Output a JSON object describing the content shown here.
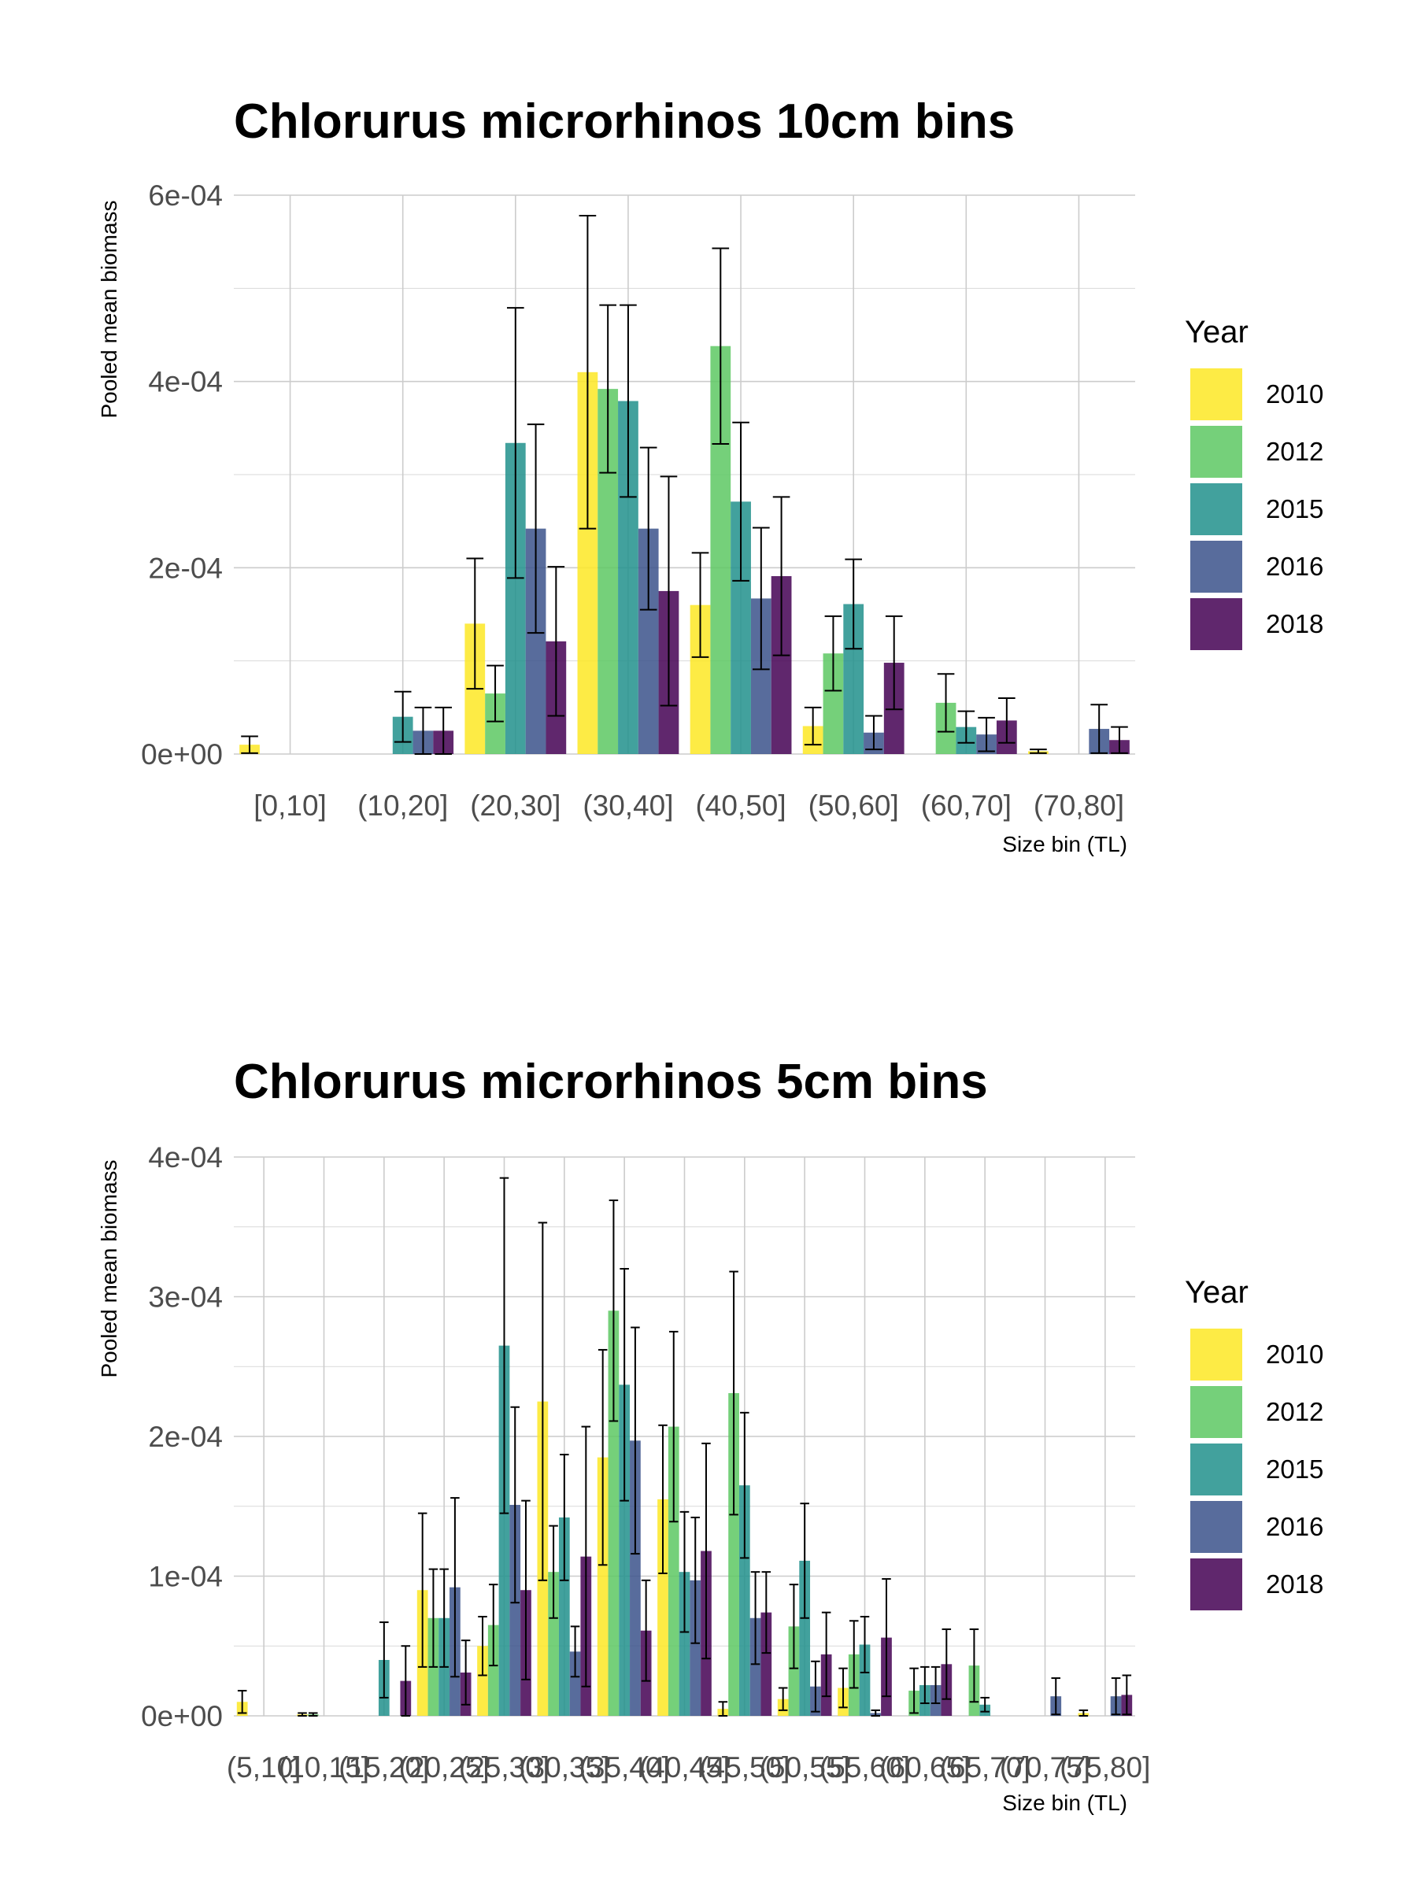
{
  "chart_data": [
    {
      "type": "bar",
      "title": "Chlorurus microrhinos 10cm bins",
      "xlabel": "Size bin (TL)",
      "ylabel": "Pooled mean biomass",
      "ylim": [
        0,
        0.0006
      ],
      "y_ticks": [
        "0e+00",
        "2e-04",
        "4e-04",
        "6e-04"
      ],
      "y_tick_values": [
        0,
        0.0002,
        0.0004,
        0.0006
      ],
      "grid": true,
      "legend": {
        "title": "Year",
        "position": "right"
      },
      "categories": [
        "[0,10]",
        "(10,20]",
        "(20,30]",
        "(30,40]",
        "(40,50]",
        "(50,60]",
        "(60,70]",
        "(70,80]"
      ],
      "series": [
        {
          "name": "2010",
          "color": "#FDE725",
          "values": [
            1e-05,
            null,
            0.00014,
            0.00041,
            0.00016,
            3e-05,
            null,
            3e-06
          ],
          "errors": [
            9e-06,
            null,
            7e-05,
            0.000168,
            5.6e-05,
            2e-05,
            null,
            2e-06
          ]
        },
        {
          "name": "2012",
          "color": "#5DC863",
          "values": [
            null,
            null,
            6.5e-05,
            0.000392,
            0.000438,
            0.000108,
            5.5e-05,
            null
          ],
          "errors": [
            null,
            null,
            3e-05,
            9e-05,
            0.000105,
            4e-05,
            3.1e-05,
            null
          ]
        },
        {
          "name": "2015",
          "color": "#21908C",
          "values": [
            null,
            4e-05,
            0.000334,
            0.000379,
            0.000271,
            0.000161,
            2.9e-05,
            null
          ],
          "errors": [
            null,
            2.7e-05,
            0.000145,
            0.000103,
            8.5e-05,
            4.8e-05,
            1.7e-05,
            null
          ]
        },
        {
          "name": "2016",
          "color": "#3B528B",
          "values": [
            null,
            2.5e-05,
            0.000242,
            0.000242,
            0.000167,
            2.3e-05,
            2.1e-05,
            2.7e-05
          ],
          "errors": [
            null,
            2.5e-05,
            0.000112,
            8.7e-05,
            7.6e-05,
            1.8e-05,
            1.8e-05,
            2.6e-05
          ]
        },
        {
          "name": "2018",
          "color": "#440154",
          "values": [
            null,
            2.5e-05,
            0.000121,
            0.000175,
            0.000191,
            9.8e-05,
            3.6e-05,
            1.5e-05
          ],
          "errors": [
            null,
            2.5e-05,
            8e-05,
            0.000123,
            8.5e-05,
            5e-05,
            2.4e-05,
            1.4e-05
          ]
        }
      ]
    },
    {
      "type": "bar",
      "title": "Chlorurus microrhinos 5cm bins",
      "xlabel": "Size bin (TL)",
      "ylabel": "Pooled mean biomass",
      "ylim": [
        0,
        0.0004
      ],
      "y_ticks": [
        "0e+00",
        "1e-04",
        "2e-04",
        "3e-04",
        "4e-04"
      ],
      "y_tick_values": [
        0,
        0.0001,
        0.0002,
        0.0003,
        0.0004
      ],
      "grid": true,
      "legend": {
        "title": "Year",
        "position": "right"
      },
      "categories": [
        "(5,10]",
        "(10,15]",
        "(15,20]",
        "(20,25]",
        "(25,30]",
        "(30,35]",
        "(35,40]",
        "(40,45]",
        "(45,50]",
        "(50,55]",
        "(55,60]",
        "(60,65]",
        "(65,70]",
        "(70,75]",
        "(75,80]"
      ],
      "series": [
        {
          "name": "2010",
          "color": "#FDE725",
          "values": [
            1e-05,
            1e-06,
            null,
            9e-05,
            5e-05,
            0.000225,
            0.000185,
            0.000155,
            5e-06,
            1.2e-05,
            2e-05,
            null,
            null,
            null,
            2e-06
          ],
          "errors": [
            8e-06,
            1e-06,
            null,
            5.5e-05,
            2.1e-05,
            0.000128,
            7.7e-05,
            5.3e-05,
            5e-06,
            8e-06,
            1.4e-05,
            null,
            null,
            null,
            2e-06
          ]
        },
        {
          "name": "2012",
          "color": "#5DC863",
          "values": [
            null,
            1e-06,
            null,
            7e-05,
            6.5e-05,
            0.000103,
            0.00029,
            0.000207,
            0.000231,
            6.4e-05,
            4.4e-05,
            1.8e-05,
            3.6e-05,
            null,
            null
          ],
          "errors": [
            null,
            1e-06,
            null,
            3.5e-05,
            2.9e-05,
            3.3e-05,
            7.9e-05,
            6.8e-05,
            8.7e-05,
            3e-05,
            2.4e-05,
            1.6e-05,
            2.6e-05,
            null,
            null
          ]
        },
        {
          "name": "2015",
          "color": "#21908C",
          "values": [
            null,
            null,
            4e-05,
            7e-05,
            0.000265,
            0.000142,
            0.000237,
            0.000103,
            0.000165,
            0.000111,
            5.1e-05,
            2.2e-05,
            8e-06,
            null,
            null
          ],
          "errors": [
            null,
            null,
            2.7e-05,
            3.5e-05,
            0.00012,
            4.5e-05,
            8.3e-05,
            4.3e-05,
            5.2e-05,
            4.1e-05,
            2e-05,
            1.3e-05,
            5e-06,
            null,
            null
          ]
        },
        {
          "name": "2016",
          "color": "#3B528B",
          "values": [
            null,
            null,
            null,
            9.2e-05,
            0.000151,
            4.6e-05,
            0.000197,
            9.7e-05,
            7e-05,
            2.1e-05,
            2e-06,
            2.2e-05,
            null,
            1.4e-05,
            1.4e-05
          ],
          "errors": [
            null,
            null,
            null,
            6.4e-05,
            7e-05,
            1.8e-05,
            8.1e-05,
            4.5e-05,
            3.3e-05,
            1.8e-05,
            2e-06,
            1.3e-05,
            null,
            1.3e-05,
            1.3e-05
          ]
        },
        {
          "name": "2018",
          "color": "#440154",
          "values": [
            null,
            null,
            2.5e-05,
            3.1e-05,
            9e-05,
            0.000114,
            6.1e-05,
            0.000118,
            7.4e-05,
            4.4e-05,
            5.6e-05,
            3.7e-05,
            null,
            null,
            1.5e-05
          ],
          "errors": [
            null,
            null,
            2.5e-05,
            2.3e-05,
            6.4e-05,
            9.3e-05,
            3.6e-05,
            7.7e-05,
            2.9e-05,
            3e-05,
            4.2e-05,
            2.5e-05,
            null,
            null,
            1.4e-05
          ]
        }
      ]
    }
  ]
}
